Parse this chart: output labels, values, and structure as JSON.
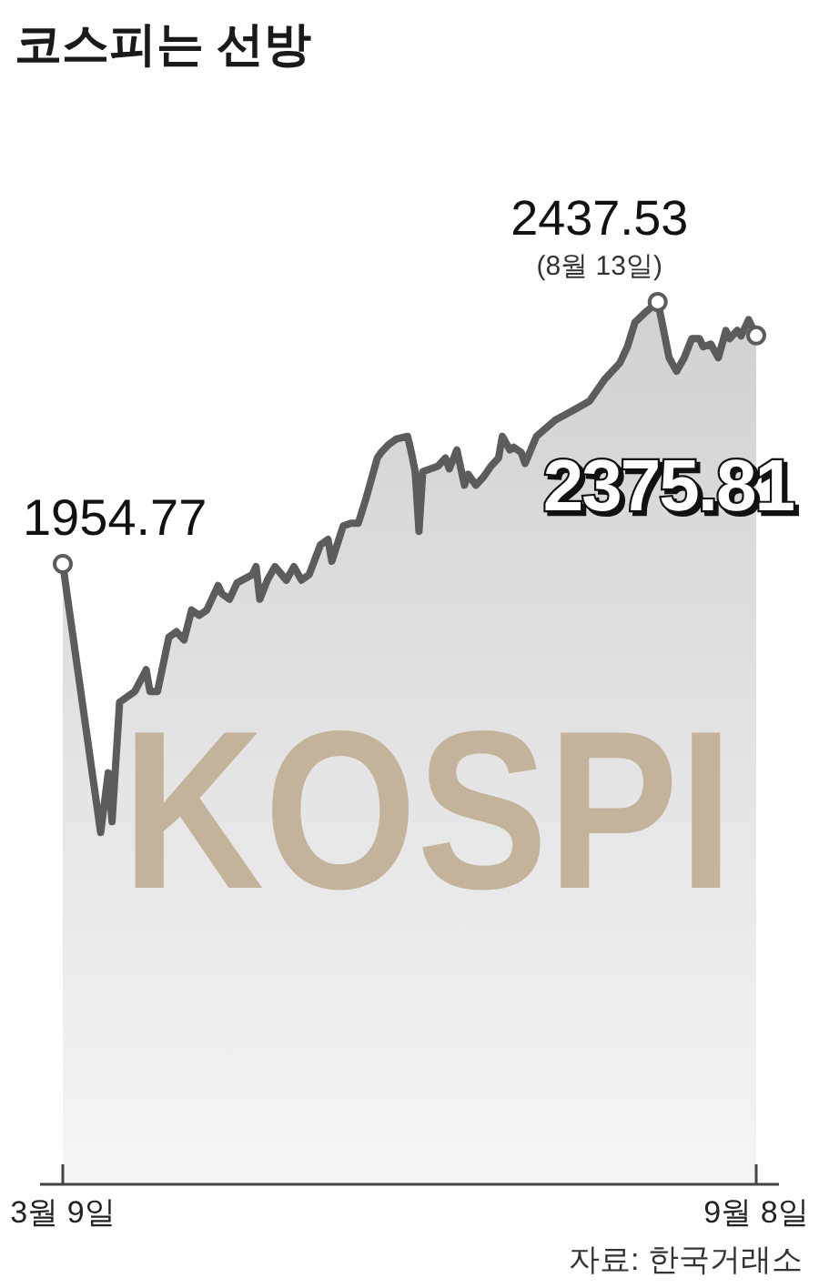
{
  "chart_data": {
    "type": "area",
    "title": "코스피는 선방",
    "annotations": [
      "KOSPI",
      {
        "text": "(8월 13일)",
        "x": "--08-13",
        "y": 2437.53
      },
      "자료: 한국거래소"
    ],
    "x": [
      "--03-09",
      "--03-19",
      "--03-21",
      "--03-22",
      "--03-24",
      "--03-26",
      "--03-28",
      "--03-31",
      "--04-01",
      "--04-03",
      "--04-06",
      "--04-08",
      "--04-10",
      "--04-12",
      "--04-14",
      "--04-16",
      "--04-19",
      "--04-20",
      "--04-22",
      "--04-24",
      "--04-28",
      "--04-29",
      "--04-30",
      "--05-02",
      "--05-04",
      "--05-07",
      "--05-09",
      "--05-11",
      "--05-13",
      "--05-16",
      "--05-18",
      "--05-19",
      "--05-22",
      "--05-24",
      "--05-26",
      "--05-28",
      "--05-31",
      "--06-01",
      "--06-03",
      "--06-05",
      "--06-08",
      "--06-09",
      "--06-10",
      "--06-11",
      "--06-12",
      "--06-14",
      "--06-16",
      "--06-18",
      "--06-19",
      "--06-21",
      "--06-23",
      "--06-24",
      "--06-26",
      "--06-28",
      "--06-30",
      "--07-02",
      "--07-03",
      "--07-05",
      "--07-06",
      "--07-08",
      "--07-09",
      "--07-12",
      "--07-17",
      "--07-21",
      "--07-26",
      "--07-30",
      "--08-03",
      "--08-05",
      "--08-07",
      "--08-10",
      "--08-13",
      "--08-14",
      "--08-16",
      "--08-18",
      "--08-20",
      "--08-22",
      "--08-24",
      "--08-25",
      "--08-27",
      "--08-29",
      "--08-31",
      "--09-01",
      "--09-03",
      "--09-04",
      "--09-06",
      "--09-08"
    ],
    "xlim": [
      "--03-03",
      "--09-14"
    ],
    "xticks": [
      {
        "value": "--03-09",
        "label": "3월 9일"
      },
      {
        "value": "--09-08",
        "label": "9월 8일"
      }
    ],
    "tick_labels": "x",
    "series": [
      {
        "color": "#5c5c5c",
        "values": [
          1954.77,
          1460,
          1570,
          1480,
          1700,
          1710,
          1720,
          1760,
          1720,
          1720,
          1820,
          1830,
          1815,
          1870,
          1860,
          1870,
          1915,
          1900,
          1890,
          1920,
          1935,
          1950,
          1890,
          1925,
          1950,
          1925,
          1950,
          1925,
          1935,
          1990,
          2000,
          1960,
          2025,
          2030,
          2030,
          2075,
          2150,
          2160,
          2175,
          2185,
          2190,
          2160,
          2125,
          2015,
          2125,
          2130,
          2135,
          2150,
          2130,
          2165,
          2100,
          2120,
          2100,
          2115,
          2135,
          2150,
          2190,
          2165,
          2170,
          2160,
          2140,
          2190,
          2220,
          2235,
          2255,
          2295,
          2325,
          2355,
          2400,
          2420,
          2437.53,
          2405,
          2335,
          2310,
          2335,
          2370,
          2370,
          2355,
          2360,
          2335,
          2385,
          2370,
          2385,
          2375,
          2405,
          2375.81
        ],
        "value_labels": [
          "1954.77",
          null,
          null,
          null,
          null,
          null,
          null,
          null,
          null,
          null,
          null,
          null,
          null,
          null,
          null,
          null,
          null,
          null,
          null,
          null,
          null,
          null,
          null,
          null,
          null,
          null,
          null,
          null,
          null,
          null,
          null,
          null,
          null,
          null,
          null,
          null,
          null,
          null,
          null,
          null,
          null,
          null,
          null,
          null,
          null,
          null,
          null,
          null,
          null,
          null,
          null,
          null,
          null,
          null,
          null,
          null,
          null,
          null,
          null,
          null,
          null,
          null,
          null,
          null,
          null,
          null,
          null,
          null,
          null,
          null,
          "2437.53",
          null,
          null,
          null,
          null,
          null,
          null,
          null,
          null,
          null,
          null,
          null,
          null,
          null,
          null,
          "2375.81"
        ]
      }
    ]
  }
}
